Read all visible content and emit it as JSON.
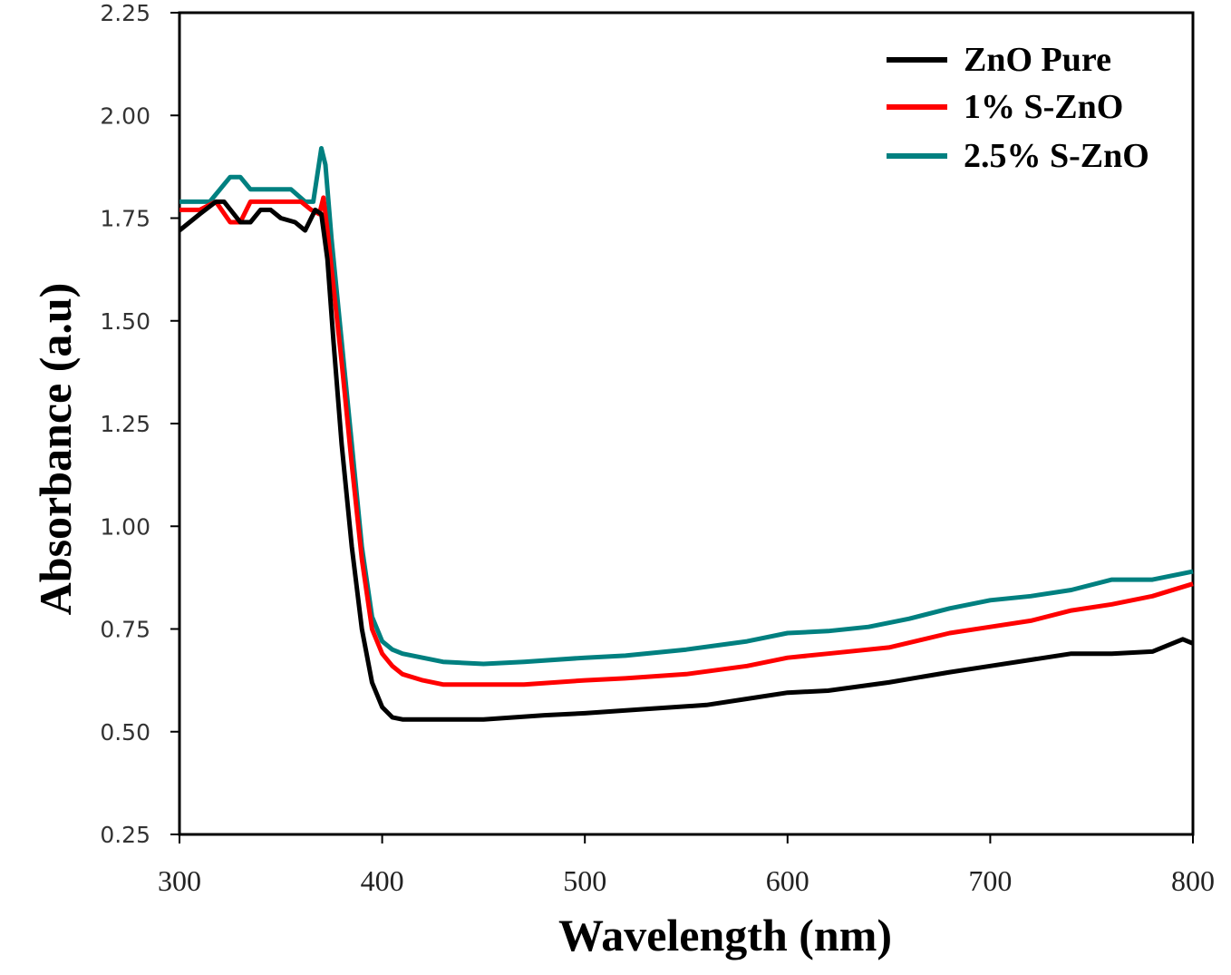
{
  "chart_data": {
    "type": "line",
    "title": "",
    "xlabel": "Wavelength (nm)",
    "ylabel": "Absorbance (a.u)",
    "xlim": [
      300,
      800
    ],
    "ylim": [
      0.25,
      2.25
    ],
    "xticks": [
      "300",
      "400",
      "500",
      "600",
      "700",
      "800"
    ],
    "yticks": [
      "0.25",
      "0.50",
      "0.75",
      "1.00",
      "1.25",
      "1.50",
      "1.75",
      "2.00",
      "2.25"
    ],
    "grid": false,
    "legend_position": "top-right",
    "series": [
      {
        "name": "ZnO Pure",
        "color": "#000000",
        "x": [
          300,
          310,
          318,
          322,
          330,
          335,
          340,
          345,
          350,
          357,
          362,
          367,
          370,
          373,
          376,
          380,
          385,
          390,
          395,
          400,
          405,
          410,
          450,
          480,
          500,
          530,
          560,
          580,
          600,
          620,
          650,
          680,
          700,
          720,
          740,
          760,
          780,
          795,
          800
        ],
        "y": [
          1.72,
          1.76,
          1.79,
          1.79,
          1.74,
          1.74,
          1.77,
          1.77,
          1.75,
          1.74,
          1.72,
          1.77,
          1.76,
          1.65,
          1.45,
          1.2,
          0.95,
          0.75,
          0.62,
          0.56,
          0.535,
          0.53,
          0.53,
          0.54,
          0.545,
          0.555,
          0.565,
          0.58,
          0.595,
          0.6,
          0.62,
          0.645,
          0.66,
          0.675,
          0.69,
          0.69,
          0.695,
          0.725,
          0.715
        ]
      },
      {
        "name": "1% S-ZnO",
        "color": "#ff0000",
        "x": [
          300,
          310,
          318,
          325,
          330,
          335,
          360,
          365,
          369,
          371,
          373,
          380,
          385,
          390,
          395,
          400,
          405,
          410,
          420,
          430,
          450,
          470,
          500,
          520,
          550,
          580,
          600,
          620,
          650,
          680,
          700,
          720,
          740,
          760,
          780,
          800
        ],
        "y": [
          1.77,
          1.77,
          1.79,
          1.74,
          1.74,
          1.79,
          1.79,
          1.77,
          1.76,
          1.8,
          1.72,
          1.4,
          1.15,
          0.92,
          0.75,
          0.69,
          0.66,
          0.64,
          0.625,
          0.615,
          0.615,
          0.615,
          0.625,
          0.63,
          0.64,
          0.66,
          0.68,
          0.69,
          0.705,
          0.74,
          0.755,
          0.77,
          0.795,
          0.81,
          0.83,
          0.86
        ]
      },
      {
        "name": "2.5% S-ZnO",
        "color": "#008080",
        "x": [
          300,
          310,
          315,
          325,
          330,
          335,
          355,
          362,
          366,
          370,
          372,
          375,
          380,
          385,
          390,
          395,
          400,
          405,
          410,
          420,
          430,
          450,
          470,
          500,
          520,
          550,
          580,
          600,
          620,
          640,
          660,
          680,
          700,
          720,
          740,
          760,
          780,
          800
        ],
        "y": [
          1.79,
          1.79,
          1.79,
          1.85,
          1.85,
          1.82,
          1.82,
          1.79,
          1.79,
          1.92,
          1.88,
          1.7,
          1.45,
          1.2,
          0.95,
          0.78,
          0.72,
          0.7,
          0.69,
          0.68,
          0.67,
          0.665,
          0.67,
          0.68,
          0.685,
          0.7,
          0.72,
          0.74,
          0.745,
          0.755,
          0.775,
          0.8,
          0.82,
          0.83,
          0.845,
          0.87,
          0.87,
          0.89
        ]
      }
    ]
  }
}
